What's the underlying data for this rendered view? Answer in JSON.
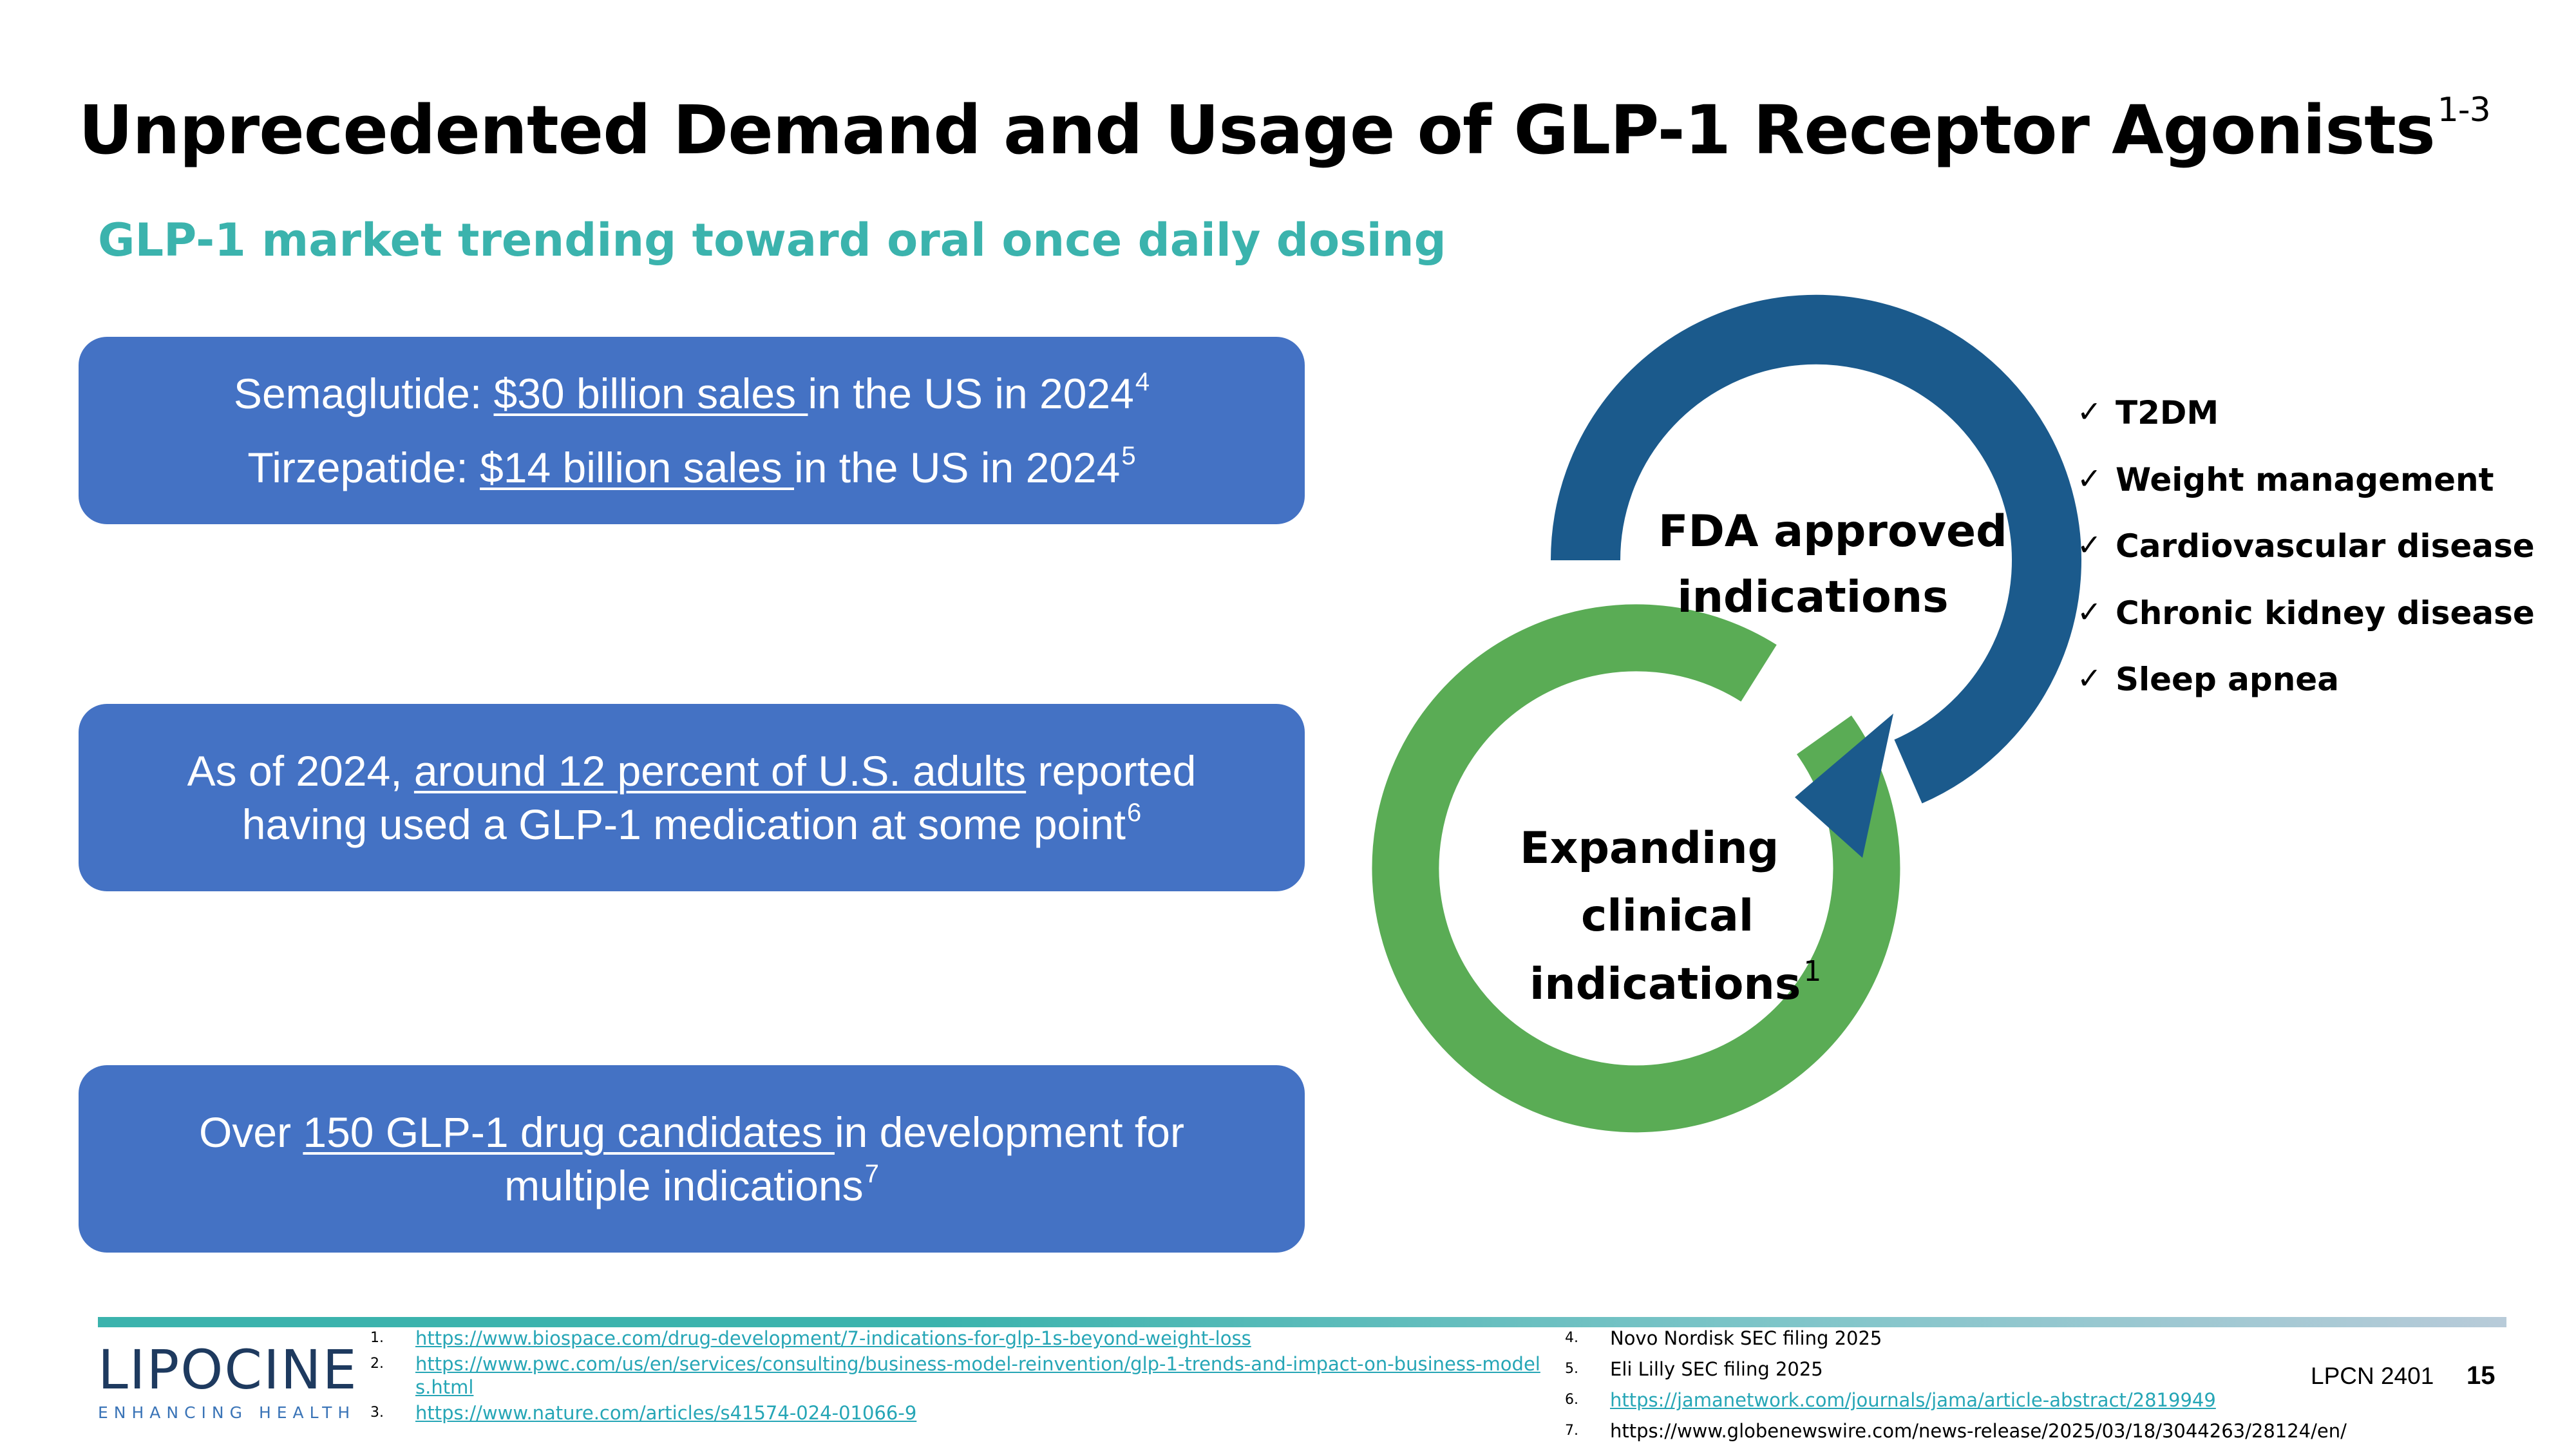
{
  "slide": {
    "title": "Unprecedented Demand and Usage of GLP-1 Receptor Agonists",
    "title_superscript": "1-3",
    "subtitle": "GLP-1 market trending toward oral once daily dosing",
    "subtitle_color": "#3bb3ad"
  },
  "boxes": {
    "color": "#4472c4",
    "box1": {
      "line1": {
        "prefix": "Semaglutide: ",
        "link": "$30 billion sales ",
        "suffix": "in the US in 2024",
        "sup": "4"
      },
      "line2": {
        "prefix": "Tirzepatide: ",
        "link": "$14 billion sales ",
        "suffix": "in the US in 2024",
        "sup": "5"
      }
    },
    "box2": {
      "line1": {
        "prefix": "As of 2024, ",
        "link": "around 12 percent of U.S. adults",
        "suffix": " reported"
      },
      "line2": {
        "text": "having used a GLP-1 medication at some point",
        "sup": "6"
      }
    },
    "box3": {
      "line1": {
        "prefix": "Over ",
        "link": "150 GLP-1 drug candidates ",
        "suffix": "in development for"
      },
      "line2": {
        "text": "multiple indications",
        "sup": "7"
      }
    }
  },
  "cycle": {
    "top_color": "#1b5a8c",
    "bottom_color": "#5aac55",
    "fda_label_line1": "FDA approved",
    "fda_label_line2": "indications",
    "expanding_line1": "Expanding",
    "expanding_line2": "clinical",
    "expanding_line3": "indications",
    "expanding_sup": "1"
  },
  "indications": [
    "T2DM",
    "Weight management",
    "Cardiovascular disease",
    "Chronic kidney disease",
    "Sleep apnea"
  ],
  "check_glyph": "✓",
  "logo": {
    "word": "LIPOCINE",
    "tagline": "ENHANCING HEALTH"
  },
  "references_left": [
    {
      "num": "1.",
      "text": "https://www.biospace.com/drug-development/7-indications-for-glp-1s-beyond-weight-loss"
    },
    {
      "num": "2.",
      "text": "https://www.pwc.com/us/en/services/consulting/business-model-reinvention/glp-1-trends-and-impact-on-business-models.html"
    },
    {
      "num": "3.",
      "text": "https://www.nature.com/articles/s41574-024-01066-9"
    }
  ],
  "references_right": [
    {
      "num": "4.",
      "text": "Novo Nordisk SEC filing 2025"
    },
    {
      "num": "5.",
      "text": "Eli Lilly SEC filing 2025"
    },
    {
      "num": "6.",
      "text": "https://jamanetwork.com/journals/jama/article-abstract/2819949"
    },
    {
      "num": "7.",
      "text": "https://www.globenewswire.com/news-release/2025/03/18/3044263/28124/en/"
    }
  ],
  "footer": {
    "code": "LPCN 2401",
    "page": "15"
  }
}
